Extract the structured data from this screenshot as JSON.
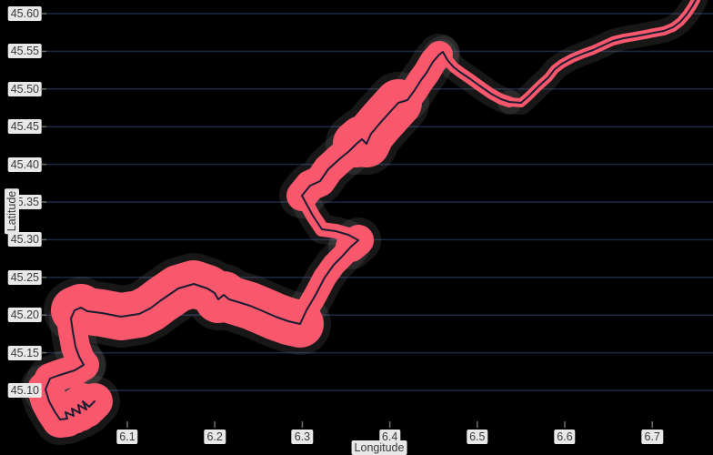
{
  "chart": {
    "colors": {
      "background": "#000000",
      "gridline": "#1d2845",
      "buffer_band": "#f9586c",
      "buffer_halo": "rgba(125,125,125,0.18)",
      "route_line": "#1a1c32",
      "tick_mark": "#6f6f6f",
      "label_chip_bg": "#e8e8e8",
      "label_text": "#3a3a3a"
    },
    "x_axis": {
      "label": "Longitude",
      "ticks": [
        {
          "value": 6.1,
          "label": "6.1"
        },
        {
          "value": 6.2,
          "label": "6.2"
        },
        {
          "value": 6.3,
          "label": "6.3"
        },
        {
          "value": 6.4,
          "label": "6.4"
        },
        {
          "value": 6.5,
          "label": "6.5"
        },
        {
          "value": 6.6,
          "label": "6.6"
        },
        {
          "value": 6.7,
          "label": "6.7"
        }
      ]
    },
    "y_axis": {
      "label": "Latitude",
      "ticks": [
        {
          "value": 45.6,
          "label": "45.60"
        },
        {
          "value": 45.55,
          "label": "45.55"
        },
        {
          "value": 45.5,
          "label": "45.50"
        },
        {
          "value": 45.45,
          "label": "45.45"
        },
        {
          "value": 45.4,
          "label": "45.40"
        },
        {
          "value": 45.35,
          "label": "45.35"
        },
        {
          "value": 45.3,
          "label": "45.30"
        },
        {
          "value": 45.25,
          "label": "45.25"
        },
        {
          "value": 45.2,
          "label": "45.20"
        },
        {
          "value": 45.15,
          "label": "45.15"
        },
        {
          "value": 45.1,
          "label": "45.10"
        }
      ]
    }
  },
  "chart_data": {
    "type": "line",
    "title": "",
    "xlabel": "Longitude",
    "ylabel": "Latitude",
    "xlim": [
      6.0,
      6.77
    ],
    "ylim": [
      45.06,
      45.62
    ],
    "grid": "horizontal-only",
    "legend": "none",
    "description": "GPS route track (dark line) with a pink uncertainty/buffer corridor of varying width, drawn on black background.",
    "route": [
      [
        6.0626,
        45.0855
      ],
      [
        6.0563,
        45.0783
      ],
      [
        6.0491,
        45.0855
      ],
      [
        6.0532,
        45.0746
      ],
      [
        6.0439,
        45.0807
      ],
      [
        6.0459,
        45.0698
      ],
      [
        6.0366,
        45.0758
      ],
      [
        6.0387,
        45.0662
      ],
      [
        6.0293,
        45.071
      ],
      [
        6.0314,
        45.0626
      ],
      [
        6.0231,
        45.0613
      ],
      [
        6.0168,
        45.0722
      ],
      [
        6.0106,
        45.0855
      ],
      [
        6.0064,
        45.1012
      ],
      [
        6.0116,
        45.1157
      ],
      [
        6.02,
        45.1193
      ],
      [
        6.0397,
        45.1266
      ],
      [
        6.0501,
        45.1338
      ],
      [
        6.0449,
        45.1447
      ],
      [
        6.0407,
        45.158
      ],
      [
        6.0376,
        45.1785
      ],
      [
        6.0355,
        45.1954
      ],
      [
        6.0397,
        45.2063
      ],
      [
        6.047,
        45.2099
      ],
      [
        6.0543,
        45.2051
      ],
      [
        6.0709,
        45.2027
      ],
      [
        6.0927,
        45.1978
      ],
      [
        6.1135,
        45.2014
      ],
      [
        6.126,
        45.2087
      ],
      [
        6.1385,
        45.2196
      ],
      [
        6.1582,
        45.2353
      ],
      [
        6.1759,
        45.2413
      ],
      [
        6.1915,
        45.2353
      ],
      [
        6.1998,
        45.2292
      ],
      [
        6.204,
        45.2208
      ],
      [
        6.2102,
        45.2268
      ],
      [
        6.2164,
        45.2208
      ],
      [
        6.2268,
        45.2171
      ],
      [
        6.2403,
        45.2123
      ],
      [
        6.2528,
        45.2063
      ],
      [
        6.2694,
        45.1978
      ],
      [
        6.284,
        45.1918
      ],
      [
        6.2975,
        45.1882
      ],
      [
        6.3048,
        45.2063
      ],
      [
        6.3152,
        45.2268
      ],
      [
        6.3256,
        45.2498
      ],
      [
        6.336,
        45.2667
      ],
      [
        6.3453,
        45.2775
      ],
      [
        6.3557,
        45.2908
      ],
      [
        6.3641,
        45.2993
      ],
      [
        6.3526,
        45.3065
      ],
      [
        6.3381,
        45.3114
      ],
      [
        6.3225,
        45.3138
      ],
      [
        6.3121,
        45.3319
      ],
      [
        6.3058,
        45.3452
      ],
      [
        6.2996,
        45.3585
      ],
      [
        6.3089,
        45.3717
      ],
      [
        6.3204,
        45.3778
      ],
      [
        6.3297,
        45.3935
      ],
      [
        6.3422,
        45.4068
      ],
      [
        6.3536,
        45.4176
      ],
      [
        6.362,
        45.4273
      ],
      [
        6.3682,
        45.4333
      ],
      [
        6.3734,
        45.4273
      ],
      [
        6.3786,
        45.4406
      ],
      [
        6.39,
        45.4563
      ],
      [
        6.3994,
        45.4684
      ],
      [
        6.4098,
        45.4816
      ],
      [
        6.4202,
        45.4853
      ],
      [
        6.4285,
        45.4986
      ],
      [
        6.4358,
        45.5118
      ],
      [
        6.442,
        45.5215
      ],
      [
        6.4493,
        45.536
      ],
      [
        6.4566,
        45.5457
      ],
      [
        6.4607,
        45.5493
      ],
      [
        6.4659,
        45.5384
      ],
      [
        6.4732,
        45.5287
      ],
      [
        6.4815,
        45.5215
      ],
      [
        6.4909,
        45.5142
      ],
      [
        6.5023,
        45.5046
      ],
      [
        6.5158,
        45.4937
      ],
      [
        6.5272,
        45.4865
      ],
      [
        6.5366,
        45.4828
      ],
      [
        6.5501,
        45.4816
      ],
      [
        6.5595,
        45.4913
      ],
      [
        6.5699,
        45.5034
      ],
      [
        6.5813,
        45.5155
      ],
      [
        6.5886,
        45.5263
      ],
      [
        6.5969,
        45.5336
      ],
      [
        6.6083,
        45.5408
      ],
      [
        6.6208,
        45.5469
      ],
      [
        6.6323,
        45.5517
      ],
      [
        6.6437,
        45.5577
      ],
      [
        6.6551,
        45.5638
      ],
      [
        6.6676,
        45.5674
      ],
      [
        6.6801,
        45.5698
      ],
      [
        6.6915,
        45.5722
      ],
      [
        6.7019,
        45.5746
      ],
      [
        6.7133,
        45.5771
      ],
      [
        6.7237,
        45.5819
      ],
      [
        6.732,
        45.5891
      ],
      [
        6.7393,
        45.5988
      ],
      [
        6.7456,
        45.6097
      ],
      [
        6.7497,
        45.6181
      ]
    ],
    "band_segments": [
      {
        "from": 0,
        "to": 13,
        "width": 40
      },
      {
        "from": 13,
        "to": 17,
        "width": 34
      },
      {
        "from": 17,
        "to": 22,
        "width": 32
      },
      {
        "from": 22,
        "to": 42,
        "width": 52
      },
      {
        "from": 42,
        "to": 48,
        "width": 26
      },
      {
        "from": 48,
        "to": 49,
        "width": 34
      },
      {
        "from": 49,
        "to": 55,
        "width": 16
      },
      {
        "from": 55,
        "to": 61,
        "width": 34
      },
      {
        "from": 61,
        "to": 67,
        "width": 52
      },
      {
        "from": 67,
        "to": 73,
        "width": 30
      },
      {
        "from": 73,
        "to": 74,
        "width": 20
      },
      {
        "from": 74,
        "to": 82,
        "width": 12
      },
      {
        "from": 82,
        "to": 103,
        "width": 10
      }
    ]
  }
}
